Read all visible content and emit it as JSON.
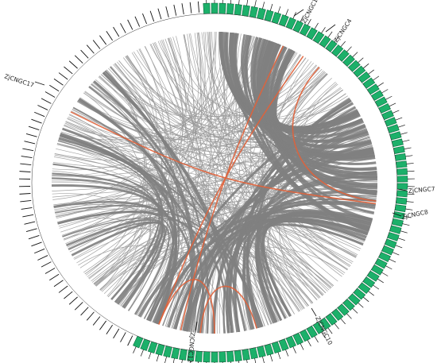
{
  "colors": {
    "chromosome": "#1cb06a",
    "chromosome_stroke": "#0b6b3d",
    "tick": "#111111",
    "link_thin": "#9a9a9a",
    "link_thick": "#7f7f7f",
    "highlight": "#e0623a",
    "label_line": "#111111"
  },
  "genes": [
    {
      "id": "ZjCNGC1",
      "label": "ZjCNGC1"
    },
    {
      "id": "ZjCNGC4",
      "label": "ZjCNGC4"
    },
    {
      "id": "ZjCNGC7",
      "label": "ZjCNGC7"
    },
    {
      "id": "ZjCNGC8",
      "label": "ZjCNGC8"
    },
    {
      "id": "ZjCNGC10",
      "label": "ZjCNGC10"
    },
    {
      "id": "ZjCNGC12",
      "label": "ZjCNGC12"
    },
    {
      "id": "ZjCNGC17",
      "label": "ZjCNGC17"
    }
  ]
}
